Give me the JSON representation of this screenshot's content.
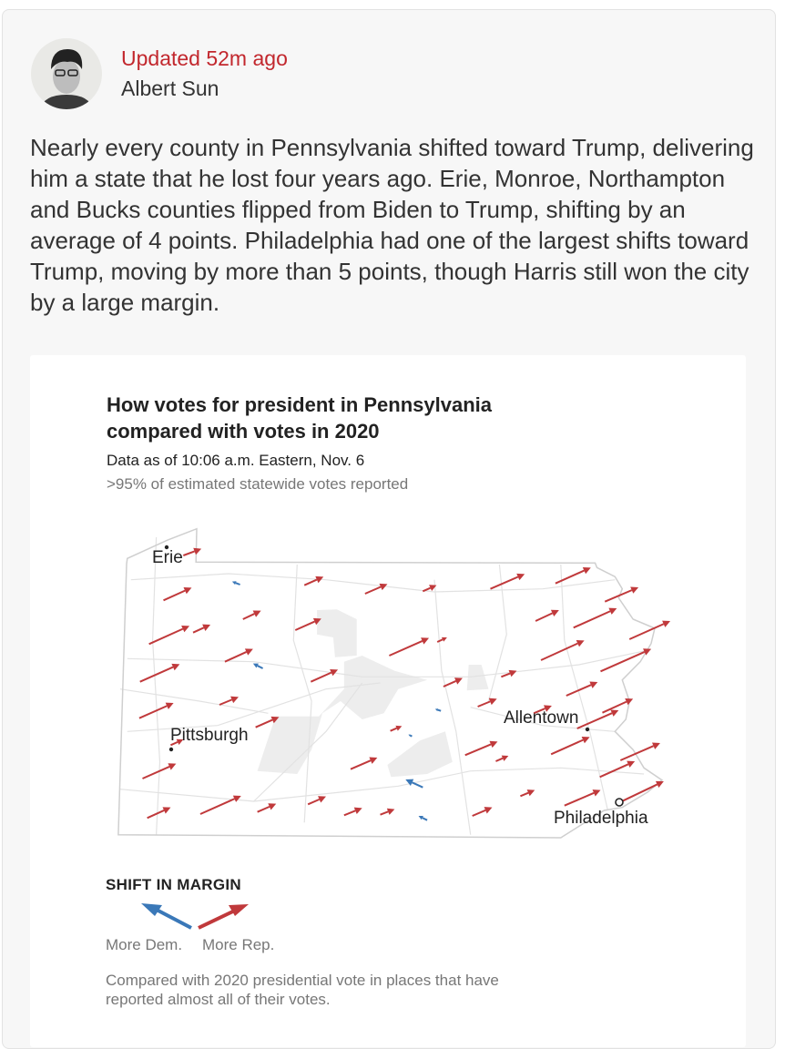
{
  "post": {
    "updated": "Updated 52m ago",
    "author": "Albert Sun",
    "body": "Nearly every county in Pennsylvania shifted toward Trump, delivering him a state that he lost four years ago. Erie, Monroe, Northampton and Bucks counties flipped from Biden to Trump, shifting by an average of 4 points. Philadelphia had one of the largest shifts toward Trump, moving by more than 5 points, though Harris still won the city by a large margin."
  },
  "graphic": {
    "title": "How votes for president in Pennsylvania compared with votes in 2020",
    "data_as_of": "Data as of 10:06 a.m. Eastern, Nov. 6",
    "reported": ">95% of estimated statewide votes reported",
    "cities": {
      "erie": "Erie",
      "pittsburgh": "Pittsburgh",
      "allentown": "Allentown",
      "philadelphia": "Philadelphia"
    },
    "legend": {
      "title": "SHIFT IN MARGIN",
      "dem": "More Dem.",
      "rep": "More Rep.",
      "note": "Compared with 2020 presidential vote in places that have reported almost all of their votes."
    },
    "colors": {
      "updated": "#c2272d",
      "rep": "#c0393b",
      "dem": "#3a78b8"
    }
  }
}
